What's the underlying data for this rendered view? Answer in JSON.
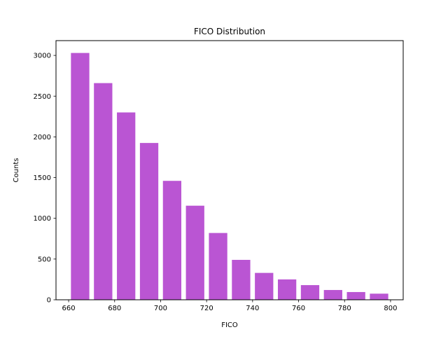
{
  "chart_data": {
    "type": "bar",
    "title": "FICO Distribution",
    "xlabel": "FICO",
    "ylabel": "Counts",
    "bar_color": "#ba55d3",
    "bar_width": 8,
    "x": [
      665,
      675,
      685,
      695,
      705,
      715,
      725,
      735,
      745,
      755,
      765,
      775,
      785,
      795
    ],
    "values": [
      3030,
      2660,
      2300,
      1925,
      1460,
      1155,
      820,
      490,
      330,
      250,
      180,
      120,
      95,
      75
    ],
    "xlim": [
      654.5,
      805.5
    ],
    "ylim": [
      0,
      3181.5
    ],
    "xticks": [
      660,
      680,
      700,
      720,
      740,
      760,
      780,
      800
    ],
    "yticks": [
      0,
      500,
      1000,
      1500,
      2000,
      2500,
      3000
    ],
    "grid": false
  }
}
